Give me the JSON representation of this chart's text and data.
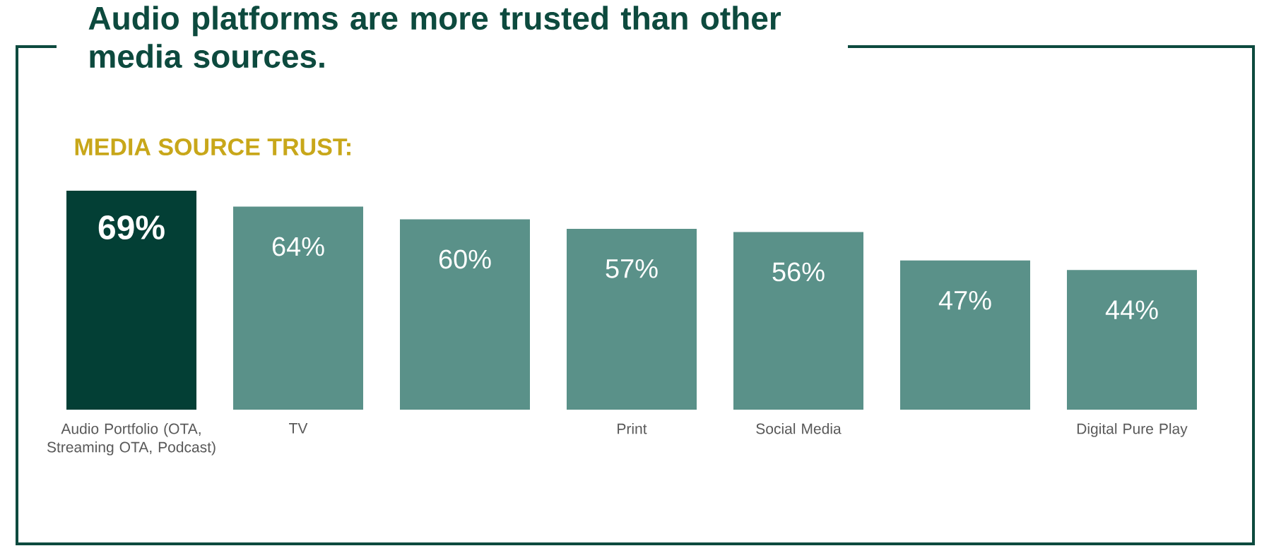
{
  "chart_data": {
    "type": "bar",
    "title": "Audio platforms are more trusted than other media sources.",
    "subtitle": "MEDIA SOURCE TRUST:",
    "categories": [
      "Audio Portfolio (OTA, Streaming OTA, Podcast)",
      "TV",
      null,
      "Print",
      "Social Media",
      null,
      "Digital Pure Play"
    ],
    "values": [
      69,
      64,
      60,
      57,
      56,
      47,
      44
    ],
    "value_labels": [
      "69%",
      "64%",
      "60%",
      "57%",
      "56%",
      "47%",
      "44%"
    ],
    "colors": [
      "#033f35",
      "#5a9189",
      "#5a9189",
      "#5a9189",
      "#5a9189",
      "#5a9189",
      "#5a9189"
    ],
    "legend": false
  }
}
